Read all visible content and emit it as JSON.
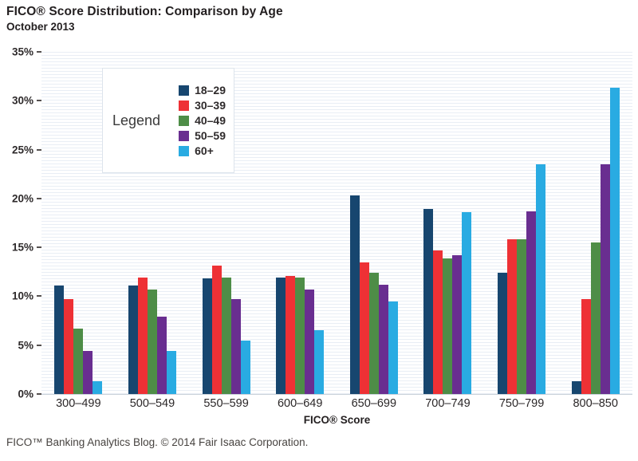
{
  "header": {
    "title": "FICO® Score Distribution: Comparison by Age",
    "subtitle": "October 2013"
  },
  "legend": {
    "title": "Legend"
  },
  "chart_data": {
    "type": "bar",
    "title": "FICO® Score Distribution: Comparison by Age",
    "subtitle": "October 2013",
    "categories": [
      "300–499",
      "500–549",
      "550–599",
      "600–649",
      "650–699",
      "700–749",
      "750–799",
      "800–850"
    ],
    "series": [
      {
        "name": "18–29",
        "color": "#17466f",
        "values": [
          11.1,
          11.1,
          11.8,
          11.9,
          20.3,
          18.9,
          12.4,
          1.3
        ]
      },
      {
        "name": "30–39",
        "color": "#ee3135",
        "values": [
          9.7,
          11.9,
          13.1,
          12.1,
          13.5,
          14.7,
          15.8,
          9.7
        ]
      },
      {
        "name": "40–49",
        "color": "#4e8d47",
        "values": [
          6.7,
          10.7,
          11.9,
          11.9,
          12.4,
          13.9,
          15.8,
          15.5
        ]
      },
      {
        "name": "50–59",
        "color": "#692e90",
        "values": [
          4.4,
          7.9,
          9.7,
          10.7,
          11.2,
          14.2,
          18.7,
          23.5
        ]
      },
      {
        "name": "60+",
        "color": "#29abe2",
        "values": [
          1.3,
          4.4,
          5.5,
          6.5,
          9.5,
          18.6,
          23.5,
          31.3
        ]
      }
    ],
    "xlabel": "FICO® Score",
    "ylabel": "",
    "ylim": [
      0,
      35
    ],
    "ytick_step": 5,
    "ytick_labels": [
      "0%",
      "5%",
      "10%",
      "15%",
      "20%",
      "25%",
      "30%",
      "35%"
    ],
    "grid": "fine horizontal stripes, no major gridlines",
    "legend_position": "upper-left"
  },
  "footer": {
    "note": "FICO™ Banking Analytics Blog. © 2014 Fair Isaac Corporation."
  },
  "colors": {
    "background": "#ffffff",
    "stripe": "#e9eef5",
    "axis_text": "#2e2a2b",
    "title_text": "#231f20",
    "legend_border": "#dde4ec"
  }
}
